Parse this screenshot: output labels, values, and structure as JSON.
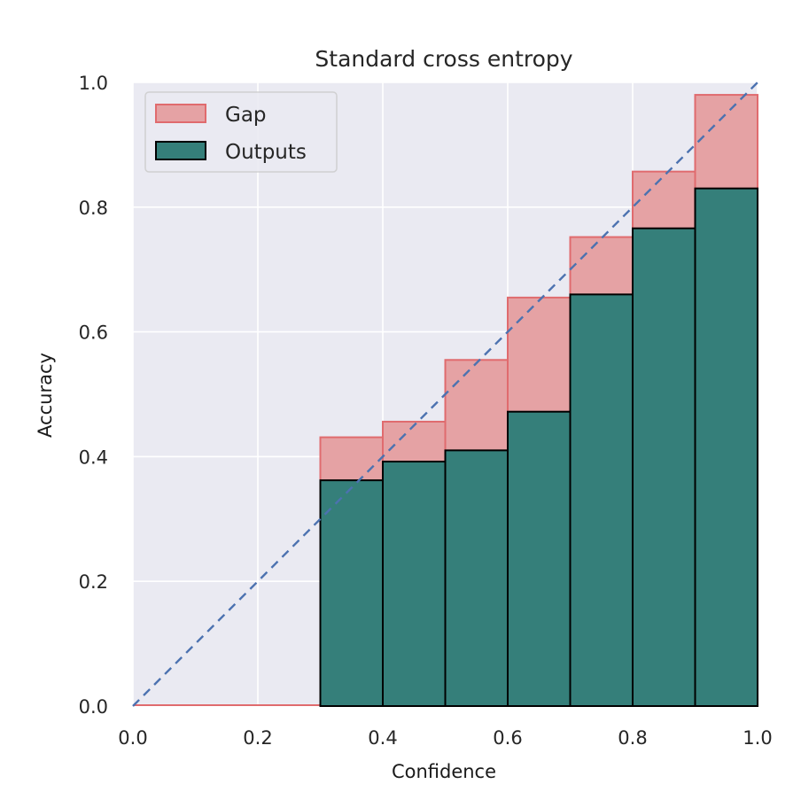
{
  "chart_data": {
    "type": "bar",
    "title": "Standard cross entropy",
    "xlabel": "Confidence",
    "ylabel": "Accuracy",
    "xlim": [
      0.0,
      1.0
    ],
    "ylim": [
      0.0,
      1.0
    ],
    "x_ticks": [
      "0.0",
      "0.2",
      "0.4",
      "0.6",
      "0.8",
      "1.0"
    ],
    "y_ticks": [
      "0.0",
      "0.2",
      "0.4",
      "0.6",
      "0.8",
      "1.0"
    ],
    "grid": true,
    "legend_position": "top-left",
    "bin_edges": [
      0.3,
      0.4,
      0.5,
      0.6,
      0.7,
      0.8,
      0.9,
      1.0
    ],
    "series": [
      {
        "name": "Outputs",
        "color": "#357f7a",
        "values": [
          0.362,
          0.392,
          0.41,
          0.472,
          0.66,
          0.766,
          0.83
        ]
      },
      {
        "name": "Gap",
        "color": "#e5a2a4",
        "edge_color": "#e06b6e",
        "values": [
          0.431,
          0.456,
          0.555,
          0.655,
          0.752,
          0.857,
          0.98
        ]
      }
    ],
    "gap_baseline_span": [
      0.0,
      0.3
    ],
    "reference_line": {
      "from": [
        0.0,
        0.0
      ],
      "to": [
        1.0,
        1.0
      ],
      "color": "#4c72b0",
      "style": "dashed"
    }
  }
}
